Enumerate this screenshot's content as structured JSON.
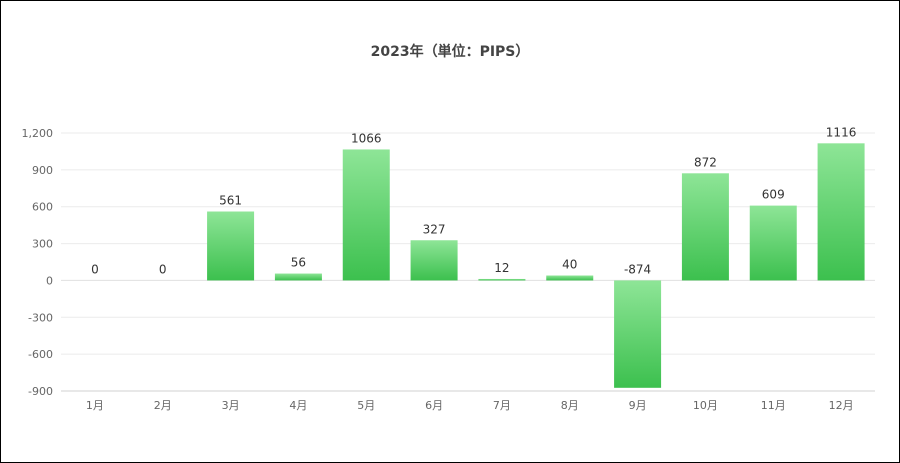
{
  "chart_data": {
    "type": "bar",
    "title": "2023年（単位：PIPS）",
    "categories": [
      "1月",
      "2月",
      "3月",
      "4月",
      "5月",
      "6月",
      "7月",
      "8月",
      "9月",
      "10月",
      "11月",
      "12月"
    ],
    "values": [
      0,
      0,
      561,
      56,
      1066,
      327,
      12,
      40,
      -874,
      872,
      609,
      1116
    ],
    "y_ticks": [
      "1,200",
      "900",
      "600",
      "300",
      "0",
      "-300",
      "-600",
      "-900"
    ],
    "y_tick_values": [
      1200,
      900,
      600,
      300,
      0,
      -300,
      -600,
      -900
    ],
    "ylim": [
      -900,
      1200
    ],
    "grid": true,
    "bar_color_top": "#8ee597",
    "bar_color_bottom": "#3cc04e"
  }
}
